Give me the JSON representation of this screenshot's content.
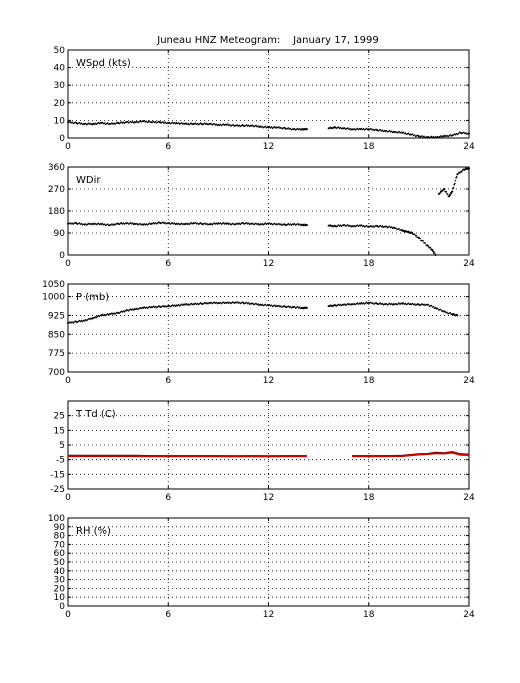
{
  "title": "Juneau HNZ Meteogram:    January 17, 1999",
  "chart_data": [
    {
      "type": "scatter",
      "panel_label": "WSpd (kts)",
      "xlim": [
        0,
        24
      ],
      "xticks": [
        0,
        6,
        12,
        18,
        24
      ],
      "ylim": [
        0,
        50
      ],
      "yticks": [
        0,
        10,
        20,
        30,
        40,
        50
      ],
      "grid": true,
      "series": [
        {
          "color": "#000000",
          "points": [
            [
              0,
              9
            ],
            [
              0.5,
              8.5
            ],
            [
              1,
              8
            ],
            [
              1.5,
              8
            ],
            [
              2,
              8.5
            ],
            [
              2.5,
              8
            ],
            [
              3,
              8.5
            ],
            [
              3.5,
              9
            ],
            [
              4,
              9
            ],
            [
              4.5,
              9.5
            ],
            [
              5,
              9
            ],
            [
              5.5,
              9
            ],
            [
              6,
              8.5
            ],
            [
              6.5,
              8.5
            ],
            [
              7,
              8
            ],
            [
              7.5,
              8
            ],
            [
              8,
              8
            ],
            [
              8.5,
              8
            ],
            [
              9,
              7.5
            ],
            [
              9.5,
              7.5
            ],
            [
              10,
              7
            ],
            [
              10.5,
              7
            ],
            [
              11,
              7
            ],
            [
              11.5,
              6.5
            ],
            [
              12,
              6
            ],
            [
              12.5,
              6
            ],
            [
              13,
              5.5
            ],
            [
              13.5,
              5
            ],
            [
              14,
              5
            ],
            [
              14.3,
              5
            ],
            [
              15.6,
              5.5
            ],
            [
              16,
              6
            ],
            [
              16.5,
              5.5
            ],
            [
              17,
              5
            ],
            [
              17.5,
              5
            ],
            [
              18,
              5
            ],
            [
              18.5,
              4.5
            ],
            [
              19,
              4
            ],
            [
              19.5,
              3.5
            ],
            [
              20,
              3
            ],
            [
              20.5,
              2
            ],
            [
              21,
              1
            ],
            [
              21.5,
              0.5
            ],
            [
              22,
              0.5
            ],
            [
              22.5,
              1
            ],
            [
              23,
              1.5
            ],
            [
              23.5,
              3
            ],
            [
              24,
              2.5
            ]
          ]
        }
      ]
    },
    {
      "type": "scatter",
      "panel_label": "WDir",
      "xlim": [
        0,
        24
      ],
      "xticks": [
        0,
        6,
        12,
        18,
        24
      ],
      "ylim": [
        0,
        360
      ],
      "yticks": [
        0,
        90,
        180,
        270,
        360
      ],
      "grid": true,
      "series": [
        {
          "color": "#000000",
          "points": [
            [
              0,
              128
            ],
            [
              0.5,
              130
            ],
            [
              1,
              125
            ],
            [
              1.5,
              128
            ],
            [
              2,
              126
            ],
            [
              2.5,
              122
            ],
            [
              3,
              128
            ],
            [
              3.5,
              130
            ],
            [
              4,
              128
            ],
            [
              4.5,
              124
            ],
            [
              5,
              128
            ],
            [
              5.5,
              132
            ],
            [
              6,
              130
            ],
            [
              6.5,
              128
            ],
            [
              7,
              126
            ],
            [
              7.5,
              130
            ],
            [
              8,
              128
            ],
            [
              8.5,
              126
            ],
            [
              9,
              130
            ],
            [
              9.5,
              128
            ],
            [
              10,
              126
            ],
            [
              10.5,
              130
            ],
            [
              11,
              128
            ],
            [
              11.5,
              126
            ],
            [
              12,
              128
            ],
            [
              12.5,
              126
            ],
            [
              13,
              124
            ],
            [
              13.5,
              126
            ],
            [
              14,
              124
            ],
            [
              14.3,
              122
            ],
            [
              15.6,
              120
            ],
            [
              16,
              118
            ],
            [
              16.5,
              122
            ],
            [
              17,
              118
            ],
            [
              17.5,
              120
            ],
            [
              18,
              116
            ],
            [
              18.5,
              118
            ],
            [
              19,
              116
            ],
            [
              19.5,
              112
            ],
            [
              20,
              100
            ],
            [
              20.3,
              95
            ],
            [
              20.6,
              90
            ],
            [
              21,
              70
            ],
            [
              21.5,
              40
            ],
            [
              21.8,
              20
            ],
            [
              22,
              0
            ],
            [
              22.2,
              250
            ],
            [
              22.5,
              270
            ],
            [
              22.8,
              240
            ],
            [
              23,
              260
            ],
            [
              23.3,
              330
            ],
            [
              23.7,
              350
            ],
            [
              24,
              355
            ]
          ]
        }
      ]
    },
    {
      "type": "scatter",
      "panel_label": "P (mb)",
      "xlim": [
        0,
        24
      ],
      "xticks": [
        0,
        6,
        12,
        18,
        24
      ],
      "ylim": [
        700,
        1050
      ],
      "yticks": [
        700,
        775,
        850,
        925,
        1000,
        1050
      ],
      "grid": true,
      "series": [
        {
          "color": "#000000",
          "points": [
            [
              0,
              895
            ],
            [
              0.5,
              900
            ],
            [
              1,
              905
            ],
            [
              1.5,
              915
            ],
            [
              2,
              925
            ],
            [
              2.5,
              930
            ],
            [
              3,
              935
            ],
            [
              3.5,
              945
            ],
            [
              4,
              950
            ],
            [
              4.5,
              955
            ],
            [
              5,
              958
            ],
            [
              5.5,
              960
            ],
            [
              6,
              962
            ],
            [
              6.5,
              965
            ],
            [
              7,
              968
            ],
            [
              7.5,
              970
            ],
            [
              8,
              972
            ],
            [
              8.5,
              975
            ],
            [
              9,
              975
            ],
            [
              9.5,
              975
            ],
            [
              10,
              976
            ],
            [
              10.5,
              975
            ],
            [
              11,
              972
            ],
            [
              11.5,
              968
            ],
            [
              12,
              965
            ],
            [
              12.5,
              962
            ],
            [
              13,
              960
            ],
            [
              13.5,
              958
            ],
            [
              14,
              955
            ],
            [
              14.3,
              955
            ],
            [
              15.6,
              962
            ],
            [
              16,
              965
            ],
            [
              16.5,
              968
            ],
            [
              17,
              970
            ],
            [
              17.5,
              972
            ],
            [
              18,
              975
            ],
            [
              18.5,
              972
            ],
            [
              19,
              970
            ],
            [
              19.5,
              970
            ],
            [
              20,
              972
            ],
            [
              20.5,
              970
            ],
            [
              21,
              968
            ],
            [
              21.5,
              968
            ],
            [
              22,
              955
            ],
            [
              22.5,
              940
            ],
            [
              23,
              930
            ],
            [
              23.3,
              925
            ]
          ]
        }
      ]
    },
    {
      "type": "line",
      "panel_label": "T Td (C)",
      "xlim": [
        0,
        24
      ],
      "xticks": [
        0,
        6,
        12,
        18,
        24
      ],
      "ylim": [
        -25,
        35
      ],
      "yticks": [
        -25,
        -15,
        -5,
        5,
        15,
        25
      ],
      "grid": true,
      "series": [
        {
          "color": "#000000",
          "points": [
            [
              0,
              -2
            ],
            [
              1,
              -2
            ],
            [
              2,
              -2
            ],
            [
              3,
              -2
            ],
            [
              4,
              -2
            ],
            [
              5,
              -2.2
            ],
            [
              6,
              -2.2
            ],
            [
              7,
              -2.2
            ],
            [
              8,
              -2.2
            ],
            [
              9,
              -2.2
            ],
            [
              10,
              -2.3
            ],
            [
              11,
              -2.2
            ],
            [
              12,
              -2.3
            ],
            [
              13,
              -2.2
            ],
            [
              14,
              -2.2
            ],
            [
              14.3,
              -2.2
            ],
            [
              15.6,
              -2.2
            ],
            [
              17,
              -2.2
            ],
            [
              18,
              -2.2
            ],
            [
              19,
              -2.2
            ],
            [
              20,
              -2
            ],
            [
              20.5,
              -1.5
            ],
            [
              21,
              -1
            ],
            [
              21.5,
              -0.8
            ],
            [
              22,
              0
            ],
            [
              22.5,
              -0.3
            ],
            [
              23,
              0.5
            ],
            [
              23.5,
              -1
            ],
            [
              24,
              -1.2
            ]
          ]
        },
        {
          "color": "#cc0000",
          "points": [
            [
              0,
              -2.6
            ],
            [
              1,
              -2.6
            ],
            [
              2,
              -2.6
            ],
            [
              3,
              -2.6
            ],
            [
              4,
              -2.6
            ],
            [
              5,
              -2.7
            ],
            [
              6,
              -2.7
            ],
            [
              7,
              -2.7
            ],
            [
              8,
              -2.7
            ],
            [
              9,
              -2.7
            ],
            [
              10,
              -2.8
            ],
            [
              11,
              -2.7
            ],
            [
              12,
              -2.8
            ],
            [
              13,
              -2.7
            ],
            [
              14,
              -2.7
            ],
            [
              14.3,
              -2.7
            ],
            [
              15.6,
              -2.7
            ],
            [
              17,
              -2.7
            ],
            [
              18,
              -2.7
            ],
            [
              19,
              -2.7
            ],
            [
              20,
              -2.5
            ],
            [
              20.5,
              -2
            ],
            [
              21,
              -1.5
            ],
            [
              21.5,
              -1.2
            ],
            [
              22,
              -0.6
            ],
            [
              22.5,
              -0.8
            ],
            [
              23,
              -0.2
            ],
            [
              23.5,
              -1.6
            ],
            [
              24,
              -1.8
            ]
          ]
        }
      ]
    },
    {
      "type": "line",
      "panel_label": "RH (%)",
      "xlim": [
        0,
        24
      ],
      "xticks": [
        0,
        6,
        12,
        18,
        24
      ],
      "ylim": [
        0,
        100
      ],
      "yticks": [
        0,
        10,
        20,
        30,
        40,
        50,
        60,
        70,
        80,
        90,
        100
      ],
      "grid": true,
      "series": []
    }
  ]
}
